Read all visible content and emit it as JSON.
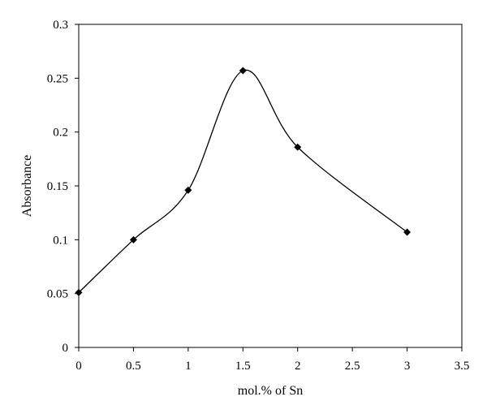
{
  "chart_data": {
    "type": "scatter",
    "xlabel": "mol.% of Sn",
    "ylabel": "Absorbance",
    "xlim": [
      0,
      3.5
    ],
    "ylim": [
      0,
      0.3
    ],
    "x_ticks": [
      "0",
      "0.5",
      "1",
      "1.5",
      "2",
      "2.5",
      "3",
      "3.5"
    ],
    "y_ticks": [
      "0",
      "0.05",
      "0.1",
      "0.15",
      "0.2",
      "0.25",
      "0.3"
    ],
    "grid": false,
    "line": "smoothed",
    "marker": "diamond",
    "color": "#000000",
    "series": [
      {
        "x": [
          0,
          0.5,
          1,
          1.5,
          2,
          3
        ],
        "y": [
          0.051,
          0.1,
          0.146,
          0.257,
          0.186,
          0.107
        ]
      }
    ]
  }
}
